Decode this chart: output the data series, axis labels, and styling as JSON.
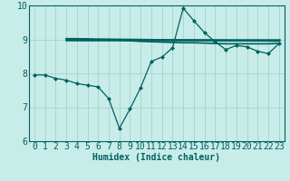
{
  "xlabel": "Humidex (Indice chaleur)",
  "xlim": [
    -0.5,
    23.5
  ],
  "ylim": [
    6,
    10
  ],
  "yticks": [
    6,
    7,
    8,
    9,
    10
  ],
  "xticks": [
    0,
    1,
    2,
    3,
    4,
    5,
    6,
    7,
    8,
    9,
    10,
    11,
    12,
    13,
    14,
    15,
    16,
    17,
    18,
    19,
    20,
    21,
    22,
    23
  ],
  "bg_color": "#c8ece8",
  "grid_color": "#a8d8d0",
  "line_color": "#006060",
  "line1_x": [
    0,
    1,
    2,
    3,
    4,
    5,
    6,
    7,
    8,
    9,
    10,
    11,
    12,
    13,
    14,
    15,
    16,
    17,
    18,
    19,
    20,
    21,
    22,
    23
  ],
  "line1_y": [
    7.95,
    7.95,
    7.85,
    7.8,
    7.7,
    7.65,
    7.6,
    7.25,
    6.38,
    6.95,
    7.58,
    8.35,
    8.48,
    8.75,
    9.92,
    9.55,
    9.2,
    8.93,
    8.7,
    8.82,
    8.78,
    8.65,
    8.58,
    8.87
  ],
  "line2_x": [
    3,
    4,
    5,
    6,
    7,
    8,
    9,
    10,
    11,
    12,
    13,
    14,
    15,
    16,
    17,
    18,
    19,
    20,
    21,
    22,
    23
  ],
  "line2_y": [
    9.02,
    9.02,
    9.01,
    8.98,
    8.99,
    8.98,
    8.96,
    8.94,
    8.93,
    8.92,
    8.91,
    8.9,
    8.9,
    8.89,
    8.88,
    8.87,
    8.87,
    8.87,
    8.87,
    8.87,
    8.88
  ],
  "line3_x": [
    3,
    23
  ],
  "line3_y": [
    9.02,
    8.95
  ],
  "line4_x": [
    3,
    23
  ],
  "line4_y": [
    8.98,
    8.98
  ],
  "tick_fontsize": 7,
  "xlabel_fontsize": 7
}
